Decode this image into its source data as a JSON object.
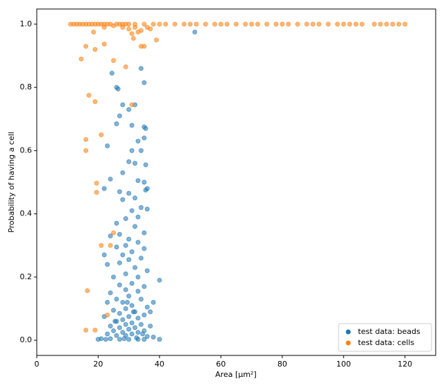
{
  "chart_data": {
    "type": "scatter",
    "xlabel": "Area [µm²]",
    "ylabel": "Probability of having a cell",
    "xlim": [
      0,
      130
    ],
    "ylim": [
      -0.048,
      1.048
    ],
    "xticks": [
      0,
      20,
      40,
      60,
      80,
      100,
      120
    ],
    "yticks": [
      {
        "value": 0,
        "label": "0.0"
      },
      0.2,
      0.4,
      0.6,
      0.8,
      {
        "value": 1,
        "label": "1.0"
      }
    ],
    "legend": "lower right",
    "series": [
      {
        "name": "test data: beads",
        "color": "#1f77b4",
        "x": [
          24.5,
          26,
          26.5,
          34,
          35,
          28,
          32,
          27,
          30,
          31,
          35,
          35.5,
          26,
          33,
          35,
          23,
          34,
          31,
          30,
          32,
          35.5,
          28,
          24,
          33,
          35,
          36,
          35.5,
          22,
          27,
          30,
          32,
          28,
          34,
          31,
          36,
          33,
          29,
          26,
          32,
          35,
          27,
          30,
          24,
          33,
          29,
          26,
          35,
          31,
          28,
          22,
          34,
          30,
          27,
          23,
          32,
          36,
          29,
          25,
          33,
          40,
          31,
          27,
          35,
          29,
          24,
          33,
          30,
          26,
          34,
          28,
          23,
          31,
          36,
          29,
          25,
          32,
          27,
          35,
          30,
          22,
          33,
          28,
          26,
          31,
          34,
          29,
          24,
          37,
          32,
          27,
          30,
          25,
          35,
          28,
          33,
          23,
          31,
          26,
          29,
          36,
          21,
          24,
          27,
          30,
          33,
          35,
          40,
          38,
          51.5,
          22.5,
          28.5,
          32.5,
          34.5,
          25.5,
          31.5,
          29.5,
          38,
          37,
          20
        ],
        "values": [
          0.845,
          0.8,
          0.795,
          0.86,
          0.815,
          0.745,
          0.745,
          0.71,
          0.73,
          0.68,
          0.675,
          0.67,
          0.685,
          0.63,
          0.64,
          0.615,
          0.6,
          0.6,
          0.565,
          0.56,
          0.555,
          0.53,
          0.51,
          0.505,
          0.5,
          0.48,
          0.475,
          0.48,
          0.47,
          0.465,
          0.45,
          0.445,
          0.42,
          0.41,
          0.415,
          0.39,
          0.385,
          0.37,
          0.36,
          0.34,
          0.335,
          0.32,
          0.33,
          0.31,
          0.3,
          0.295,
          0.29,
          0.28,
          0.27,
          0.27,
          0.26,
          0.255,
          0.245,
          0.24,
          0.23,
          0.22,
          0.21,
          0.2,
          0.2,
          0.19,
          0.18,
          0.175,
          0.17,
          0.16,
          0.15,
          0.155,
          0.14,
          0.13,
          0.13,
          0.12,
          0.12,
          0.11,
          0.105,
          0.1,
          0.095,
          0.09,
          0.085,
          0.08,
          0.075,
          0.075,
          0.07,
          0.065,
          0.06,
          0.055,
          0.05,
          0.05,
          0.045,
          0.045,
          0.04,
          0.04,
          0.035,
          0.03,
          0.03,
          0.025,
          0.025,
          0.02,
          0.02,
          0.015,
          0.015,
          0.012,
          0.005,
          0.005,
          0.003,
          0.003,
          0.003,
          0.003,
          0.003,
          0.01,
          0.975,
          0.003,
          0.005,
          0.008,
          0.02,
          0.06,
          0.09,
          0.12,
          0.12,
          0.09,
          0.003
        ]
      },
      {
        "name": "test data: cells",
        "color": "#ff7f0e",
        "x": [
          14.5,
          16,
          17,
          19,
          16,
          16,
          19.5,
          19.5,
          21,
          21,
          22,
          19,
          18.5,
          25,
          29,
          31,
          16.5,
          16,
          19,
          23,
          25,
          24,
          34,
          35,
          39,
          31.5,
          30,
          32,
          34,
          36,
          28,
          31,
          33,
          37,
          22,
          25,
          11,
          12,
          13,
          14,
          15,
          16,
          17,
          18,
          19,
          20,
          21,
          22,
          23,
          24,
          26,
          27,
          28,
          29,
          30,
          32,
          35,
          38,
          40,
          42,
          45,
          48,
          50,
          52,
          55,
          58,
          60,
          62,
          65,
          68,
          70,
          72,
          75,
          78,
          80,
          82,
          85,
          88,
          90,
          92,
          95,
          98,
          100,
          102,
          104,
          106,
          110,
          112,
          114,
          116,
          118,
          120
        ],
        "values": [
          0.89,
          0.93,
          0.775,
          0.755,
          0.635,
          0.6,
          0.497,
          0.468,
          0.65,
          0.3,
          0.937,
          0.92,
          0.975,
          0.885,
          0.865,
          0.745,
          0.157,
          0.032,
          0.032,
          0.08,
          0.34,
          0.3,
          0.93,
          0.93,
          0.95,
          0.955,
          0.985,
          0.99,
          0.98,
          0.99,
          0.99,
          0.97,
          0.975,
          0.985,
          0.99,
          0.995,
          1,
          1,
          1,
          1,
          1,
          1,
          1,
          1,
          1,
          1,
          1,
          1,
          1,
          1,
          1,
          1,
          1,
          1,
          1,
          1,
          1,
          1,
          1,
          1,
          1,
          1,
          1,
          1,
          1,
          1,
          1,
          1,
          1,
          1,
          1,
          1,
          1,
          1,
          1,
          1,
          1,
          1,
          1,
          1,
          1,
          1,
          1,
          1,
          1,
          1,
          1,
          1,
          1,
          1,
          1,
          1
        ]
      }
    ]
  }
}
